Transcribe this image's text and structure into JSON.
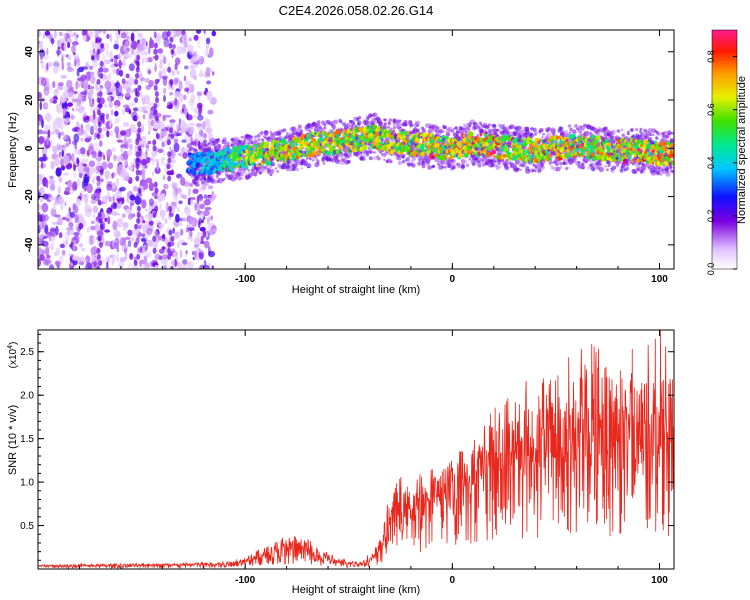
{
  "title": "C2E4.2026.058.02.26.G14",
  "colors": {
    "snr_line": "#e8261c",
    "axis": "#000000",
    "scatter_noise": "#8a2be2"
  },
  "chart_data": [
    {
      "type": "heatmap",
      "title": "C2E4.2026.058.02.26.G14",
      "xlabel": "Height of straight line (km)",
      "ylabel": "Frequency (Hz)",
      "xlim": [
        -200,
        107
      ],
      "ylim": [
        -50,
        49
      ],
      "xticks": [
        -100,
        0,
        100
      ],
      "xtick_labels": [
        "-100",
        "0",
        "100"
      ],
      "yticks": [
        -40,
        -20,
        0,
        20,
        40
      ],
      "ytick_labels": [
        "-40",
        "-20",
        "0",
        "20",
        "40"
      ],
      "colorbar": {
        "label": "Normalized spectral amplitude",
        "range": [
          0.0,
          0.9
        ],
        "ticks": [
          0.0,
          0.2,
          0.4,
          0.6,
          0.8
        ],
        "tick_labels": [
          "0.0",
          "0.2",
          "0.4",
          "0.6",
          "0.8"
        ]
      },
      "signal_track": {
        "x": [
          -127,
          -110,
          -95,
          -80,
          -65,
          -50,
          -38,
          -30,
          -20,
          -10,
          0,
          10,
          20,
          30,
          40,
          50,
          60,
          70,
          80,
          90,
          100,
          107
        ],
        "freq": [
          -7,
          -5,
          -3,
          -1,
          2,
          3,
          5,
          3,
          2,
          1,
          0,
          2,
          1,
          0,
          -1,
          0,
          1,
          0,
          -1,
          -1,
          -2,
          -2
        ]
      },
      "noise_region_x": [
        -200,
        -125
      ]
    },
    {
      "type": "line",
      "xlabel": "Height of straight line (km)",
      "ylabel": "SNR (10 * v/v)",
      "y_multiplier": "(x10",
      "y_multiplier_exp": "4",
      "xlim": [
        -200,
        107
      ],
      "ylim": [
        0,
        2.75
      ],
      "xticks": [
        -100,
        0,
        100
      ],
      "xtick_labels": [
        "-100",
        "0",
        "100"
      ],
      "yticks": [
        0.5,
        1.0,
        1.5,
        2.0,
        2.5
      ],
      "ytick_labels": [
        "0.5",
        "1.0",
        "1.5",
        "2.0",
        "2.5"
      ],
      "envelope": {
        "x": [
          -200,
          -130,
          -108,
          -100,
          -90,
          -80,
          -70,
          -62,
          -55,
          -45,
          -38,
          -33,
          -30,
          -25,
          -20,
          -15,
          -10,
          0,
          10,
          20,
          30,
          40,
          50,
          60,
          70,
          80,
          90,
          100,
          107
        ],
        "peak": [
          0.05,
          0.07,
          0.09,
          0.15,
          0.28,
          0.38,
          0.35,
          0.22,
          0.12,
          0.09,
          0.2,
          0.5,
          0.95,
          1.05,
          0.9,
          1.1,
          1.15,
          1.35,
          1.5,
          1.85,
          2.05,
          2.2,
          2.3,
          2.5,
          2.6,
          2.55,
          2.5,
          2.75,
          2.4
        ],
        "mean": [
          0.03,
          0.04,
          0.05,
          0.08,
          0.13,
          0.2,
          0.17,
          0.1,
          0.06,
          0.05,
          0.1,
          0.28,
          0.5,
          0.6,
          0.55,
          0.65,
          0.7,
          0.85,
          0.95,
          1.1,
          1.15,
          1.2,
          1.2,
          1.25,
          1.25,
          1.25,
          1.25,
          1.3,
          1.2
        ]
      }
    }
  ]
}
